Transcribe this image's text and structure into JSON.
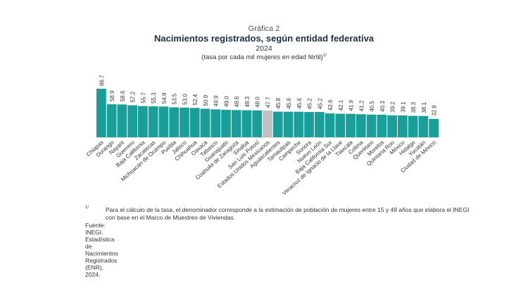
{
  "header": {
    "label": "Gráfica 2",
    "title": "Nacimientos registrados, según entidad federativa",
    "year": "2024",
    "subtitle": "(tasa por cada mil mujeres en edad fértil)",
    "subtitle_note_mark": "1/"
  },
  "colors": {
    "bar": "#1a9e9a",
    "highlight": "#c0c0c0",
    "axis": "#888888",
    "label": "#333333"
  },
  "chart_data": {
    "type": "bar",
    "title": "Nacimientos registrados, según entidad federativa",
    "subtitle": "2024 (tasa por cada mil mujeres en edad fértil)",
    "xlabel": "",
    "ylabel": "",
    "ylim": [
      0,
      90
    ],
    "grid": false,
    "highlight_category": "Estados Unidos Mexicanos",
    "categories": [
      "Chiapas",
      "Durango",
      "Nayarit",
      "Guerrero",
      "Baja California",
      "Zacatecas",
      "Michoacán de Ocampo",
      "Puebla",
      "Jalisco",
      "Chihuahua",
      "Oaxaca",
      "Tabasco",
      "Guanajuato",
      "Coahuila de Zaragoza",
      "Sinaloa",
      "San Luis Potosí",
      "Estados Unidos Mexicanos",
      "Aguascalientes",
      "Tamaulipas",
      "Campeche",
      "Sonora",
      "Nuevo León",
      "Baja California Sur",
      "Veracruz de Ignacio de la Llave",
      "Tlaxcala",
      "Colima",
      "Querétaro",
      "Morelos",
      "Quintana Roo",
      "México",
      "Hidalgo",
      "Yucatán",
      "Ciudad de México"
    ],
    "values": [
      86.7,
      58.9,
      58.6,
      57.2,
      55.7,
      55.3,
      54.9,
      53.5,
      53.0,
      52.4,
      50.9,
      49.9,
      49.0,
      48.6,
      48.3,
      48.0,
      47.7,
      45.8,
      45.6,
      45.6,
      45.2,
      45.2,
      42.6,
      42.1,
      41.9,
      41.2,
      40.5,
      40.3,
      39.2,
      39.1,
      38.3,
      38.1,
      32.8
    ],
    "value_labels": [
      "86.7",
      "58.9",
      "58.6",
      "57.2",
      "55.7",
      "55.3",
      "54.9",
      "53.5",
      "53.0",
      "52.4",
      "50.9",
      "49.9",
      "49.0",
      "48.6",
      "48.3",
      "48.0",
      "47.7",
      "45.8",
      "45.6",
      "45.6",
      "45.2",
      "45.2",
      "42.6",
      "42.1",
      "41.9",
      "41.2",
      "40.5",
      "40.3",
      "39.2",
      "39.1",
      "38.3",
      "38.1",
      "32.8"
    ]
  },
  "notes": {
    "mark": "1/",
    "text": "Para el cálculo de la tasa, el denominador corresponde a la estimación de población de mujeres entre 15 y 49 años que elabora el INEGI con base en el Marco de Muestreo de Viviendas.",
    "source": "Fuente: INEGI. Estadística de Nacimientos Registrados (ENR), 2024."
  }
}
